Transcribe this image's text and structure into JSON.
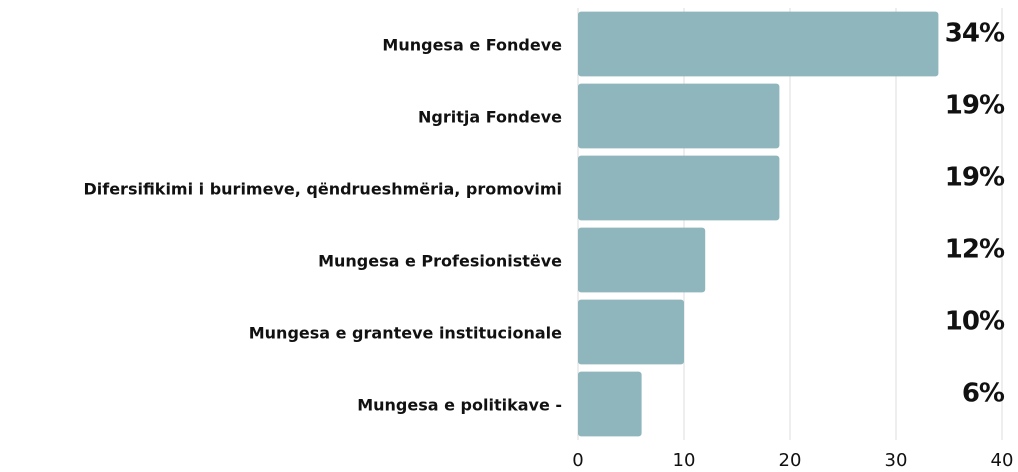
{
  "chart_data": {
    "type": "barh",
    "categories": [
      "Mungesa e Fondeve",
      "Ngritja Fondeve",
      "Difersifikimi i burimeve, qëndrueshmëria, promovimi",
      "Mungesa e Profesionistëve",
      "Mungesa e granteve institucionale",
      "Mungesa e politikave -"
    ],
    "values": [
      34,
      19,
      19,
      12,
      10,
      6
    ],
    "value_labels": [
      "34%",
      "19%",
      "19%",
      "12%",
      "10%",
      "6%"
    ],
    "color": "#8fb5bd",
    "xlim": [
      0,
      40
    ],
    "xticks": [
      0,
      10,
      20,
      30,
      40
    ],
    "grid": true
  }
}
